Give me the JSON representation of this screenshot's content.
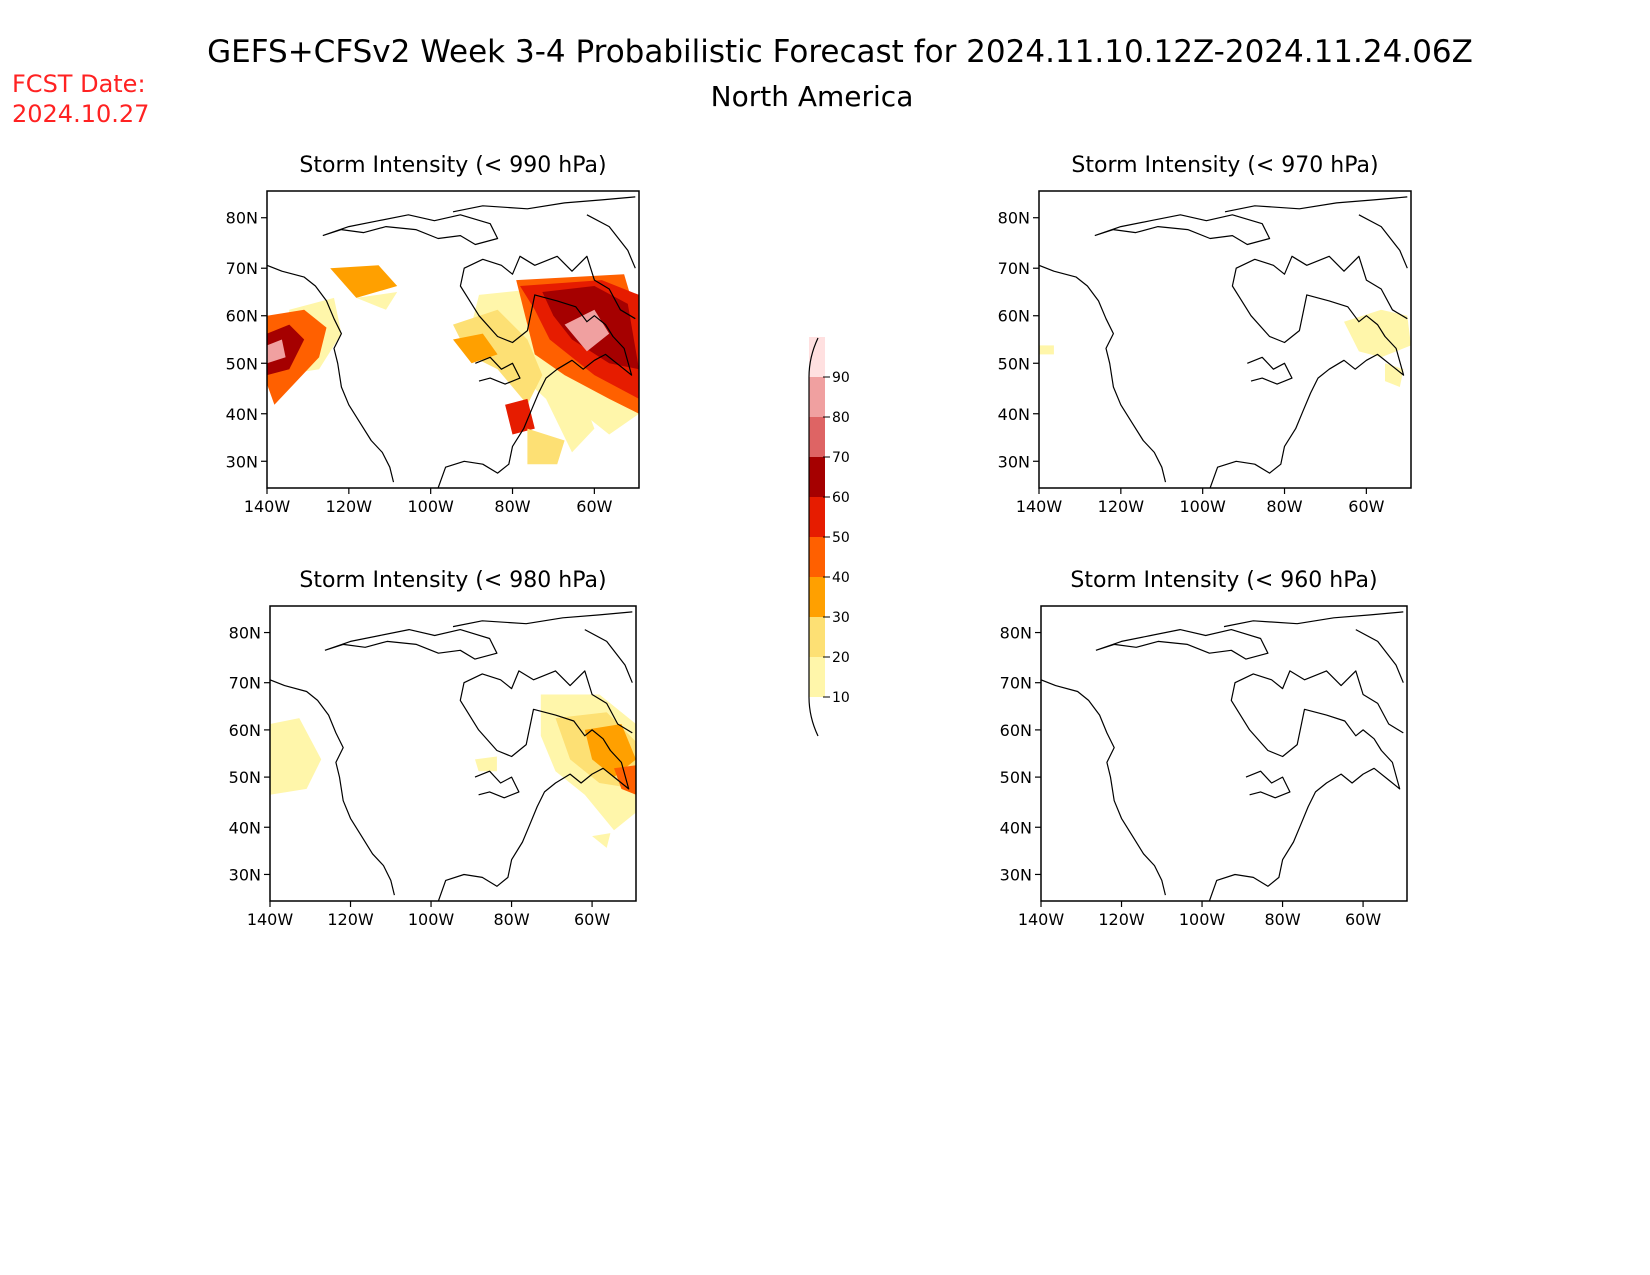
{
  "header": {
    "title": "GEFS+CFSv2 Week 3-4 Probabilistic Forecast for 2024.11.10.12Z-2024.11.24.06Z",
    "subtitle": "North America",
    "fcst_label": "FCST Date:",
    "fcst_date": "2024.10.27",
    "fcst_color": "#ff2222"
  },
  "axes": {
    "lat_labels": [
      "80N",
      "70N",
      "60N",
      "50N",
      "40N",
      "30N"
    ],
    "lon_labels": [
      "140W",
      "120W",
      "100W",
      "80W",
      "60W"
    ]
  },
  "panels": [
    {
      "id": "p990",
      "title": "Storm Intensity (< 990 hPa)",
      "signal": "high"
    },
    {
      "id": "p970",
      "title": "Storm Intensity (< 970 hPa)",
      "signal": "low"
    },
    {
      "id": "p980",
      "title": "Storm Intensity (< 980 hPa)",
      "signal": "medium"
    },
    {
      "id": "p960",
      "title": "Storm Intensity (< 960 hPa)",
      "signal": "none"
    }
  ],
  "colorbar": {
    "levels": [
      "10",
      "20",
      "30",
      "40",
      "50",
      "60",
      "70",
      "80",
      "90"
    ],
    "colors": [
      "#fff6aa",
      "#fde074",
      "#ffa000",
      "#ff6000",
      "#e61c00",
      "#a50000",
      "#de6464",
      "#f0a0a0",
      "#ffe0e0"
    ]
  }
}
